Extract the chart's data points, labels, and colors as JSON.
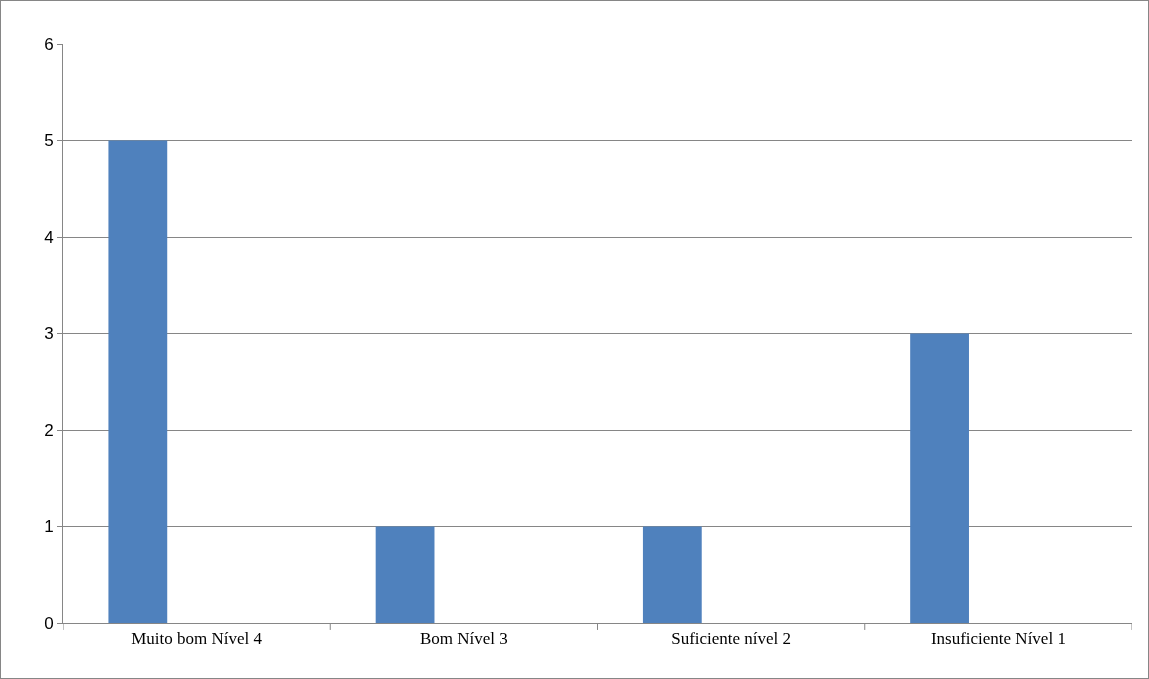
{
  "chart_data": {
    "type": "bar",
    "categories": [
      "Muito bom Nível 4",
      "Bom Nível 3",
      "Suficiente nível 2",
      "Insuficiente Nível 1"
    ],
    "values": [
      5,
      1,
      1,
      3
    ],
    "color": "#4f81bd",
    "ylim": [
      0,
      6
    ],
    "yticks": [
      0,
      1,
      2,
      3,
      4,
      5,
      6
    ],
    "grid": "y"
  }
}
